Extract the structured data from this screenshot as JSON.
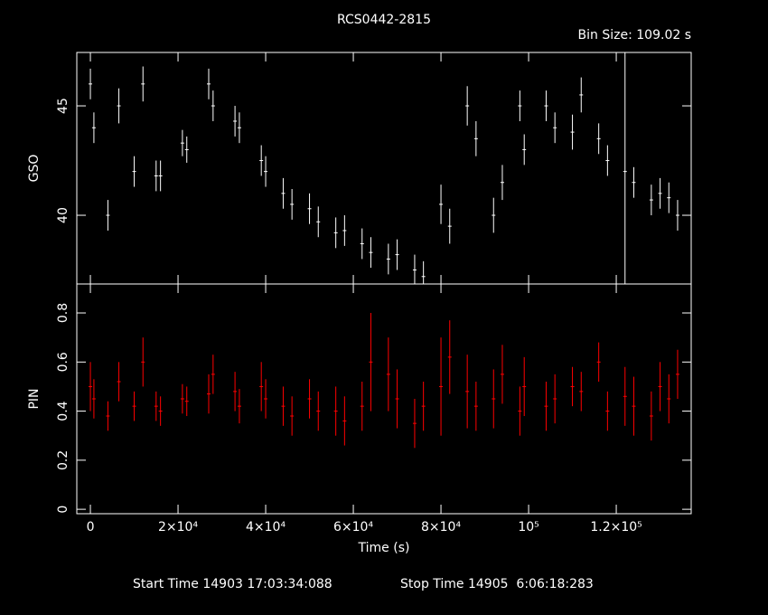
{
  "chart_data": {
    "type": "errorbar",
    "title": "RCS0442-2815",
    "subtitle": "Bin Size: 109.02 s",
    "x_label": "Time (s)",
    "footer_start": "Start Time 14903 17:03:34:088",
    "footer_stop": "Stop Time 14905  6:06:18:283",
    "x": [
      0,
      800,
      4000,
      6500,
      10000,
      12000,
      15000,
      16000,
      21000,
      22000,
      27000,
      28000,
      33000,
      34000,
      39000,
      40000,
      44000,
      46000,
      50000,
      52000,
      56000,
      58000,
      62000,
      64000,
      68000,
      70000,
      74000,
      76000,
      80000,
      82000,
      86000,
      88000,
      92000,
      94000,
      98000,
      99000,
      104000,
      106000,
      110000,
      112000,
      116000,
      118000,
      122000,
      124000,
      128000,
      130000,
      132000,
      134000
    ],
    "xlim": [
      -3100,
      137100
    ],
    "xticks": [
      0,
      {
        "value": 20000,
        "label": "2×10⁴"
      },
      {
        "value": 40000,
        "label": "4×10⁴"
      },
      {
        "value": 60000,
        "label": "6×10⁴"
      },
      {
        "value": 80000,
        "label": "8×10⁴"
      },
      {
        "value": 100000,
        "label": "10⁵"
      },
      {
        "value": 120000,
        "label": "1.2×10⁵"
      }
    ],
    "panels": [
      {
        "name": "GSO",
        "color": "#ffffff",
        "values": [
          46,
          44,
          40,
          45,
          42,
          46,
          41.8,
          41.8,
          43.3,
          43,
          46,
          45,
          44.3,
          44,
          42.5,
          42,
          41,
          40.5,
          40.3,
          39.7,
          39.2,
          39.3,
          38.7,
          38.3,
          38,
          38.2,
          37.5,
          37.2,
          40.5,
          39.5,
          45,
          43.5,
          40,
          41.5,
          45,
          43,
          45,
          44,
          43.8,
          45.5,
          43.5,
          42.5,
          42,
          41.5,
          40.7,
          41,
          40.8,
          40
        ],
        "errors": [
          0.7,
          0.7,
          0.7,
          0.8,
          0.7,
          0.8,
          0.7,
          0.7,
          0.6,
          0.6,
          0.7,
          0.7,
          0.7,
          0.7,
          0.7,
          0.7,
          0.7,
          0.7,
          0.7,
          0.7,
          0.7,
          0.7,
          0.7,
          0.7,
          0.7,
          0.7,
          0.7,
          0.7,
          0.9,
          0.8,
          0.9,
          0.8,
          0.8,
          0.8,
          0.7,
          0.7,
          0.7,
          0.7,
          0.8,
          0.8,
          0.7,
          0.7,
          6,
          0.7,
          0.7,
          0.7,
          0.7,
          0.7
        ],
        "ylim": [
          36.86,
          47.44
        ],
        "yticks": [
          40,
          45
        ]
      },
      {
        "name": "PIN",
        "color": "#ff0000",
        "values": [
          0.5,
          0.45,
          0.38,
          0.52,
          0.42,
          0.6,
          0.42,
          0.4,
          0.45,
          0.44,
          0.47,
          0.55,
          0.48,
          0.42,
          0.5,
          0.45,
          0.42,
          0.38,
          0.45,
          0.4,
          0.4,
          0.36,
          0.42,
          0.6,
          0.55,
          0.45,
          0.35,
          0.42,
          0.5,
          0.62,
          0.48,
          0.42,
          0.45,
          0.55,
          0.4,
          0.5,
          0.42,
          0.45,
          0.5,
          0.48,
          0.6,
          0.4,
          0.46,
          0.42,
          0.38,
          0.5,
          0.45,
          0.55
        ],
        "errors": [
          0.1,
          0.08,
          0.06,
          0.08,
          0.06,
          0.1,
          0.06,
          0.06,
          0.06,
          0.06,
          0.08,
          0.08,
          0.08,
          0.07,
          0.1,
          0.08,
          0.08,
          0.08,
          0.08,
          0.08,
          0.1,
          0.1,
          0.1,
          0.2,
          0.15,
          0.12,
          0.1,
          0.1,
          0.2,
          0.15,
          0.15,
          0.1,
          0.12,
          0.12,
          0.1,
          0.12,
          0.1,
          0.1,
          0.08,
          0.08,
          0.08,
          0.08,
          0.12,
          0.12,
          0.1,
          0.1,
          0.1,
          0.1
        ],
        "ylim": [
          -0.018,
          0.918
        ],
        "yticks": [
          0,
          0.2,
          0.4,
          0.6,
          0.8
        ]
      }
    ]
  }
}
